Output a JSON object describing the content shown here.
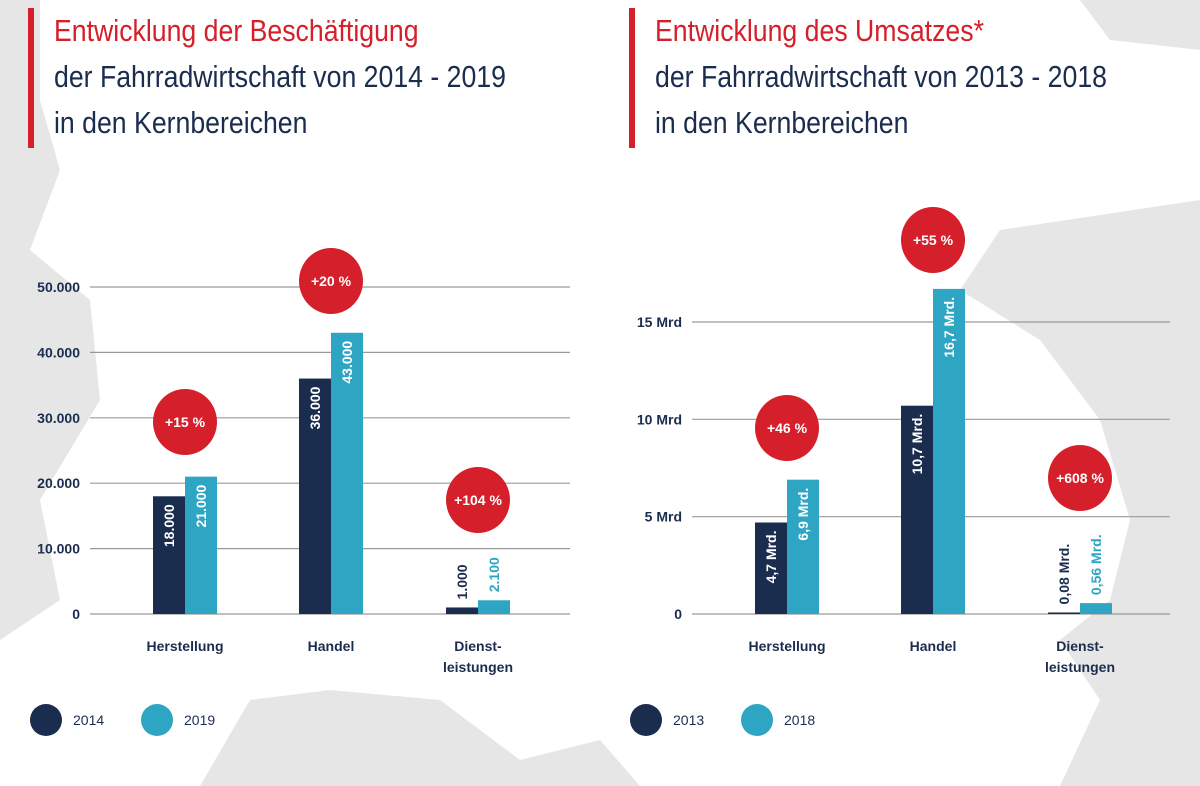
{
  "colors": {
    "navy": "#1b2d4f",
    "teal": "#2ea6c3",
    "red": "#d5202b",
    "grid": "#9a9a9a",
    "map_bg": "#e6e6e6",
    "map_land": "#ffffff"
  },
  "chart_data": [
    {
      "type": "bar",
      "title": "Entwicklung der Beschäftigung",
      "subtitle_lines": [
        "der Fahrradwirtschaft von 2014 - 2019",
        "in den Kernbereichen"
      ],
      "categories": [
        "Herstellung",
        "Handel",
        "Dienst-\nleistungen"
      ],
      "series": [
        {
          "name": "2014",
          "color": "#1b2d4f",
          "values": [
            18000,
            36000,
            1000
          ],
          "labels": [
            "18.000",
            "36.000",
            "1.000"
          ]
        },
        {
          "name": "2019",
          "color": "#2ea6c3",
          "values": [
            21000,
            43000,
            2100
          ],
          "labels": [
            "21.000",
            "43.000",
            "2.100"
          ]
        }
      ],
      "changes": [
        "+15 %",
        "+20 %",
        "+104 %"
      ],
      "yticks": [
        0,
        10000,
        20000,
        30000,
        40000,
        50000
      ],
      "ytick_labels": [
        "0",
        "10.000",
        "20.000",
        "30.000",
        "40.000",
        "50.000"
      ],
      "ylim": [
        0,
        50000
      ],
      "grid": true,
      "legend": "bottom-left",
      "xlabel": "",
      "ylabel": ""
    },
    {
      "type": "bar",
      "title": "Entwicklung des Umsatzes*",
      "subtitle_lines": [
        "der Fahrradwirtschaft von 2013 - 2018",
        "in den Kernbereichen"
      ],
      "categories": [
        "Herstellung",
        "Handel",
        "Dienst-\nleistungen"
      ],
      "series": [
        {
          "name": "2013",
          "color": "#1b2d4f",
          "values": [
            4.7,
            10.7,
            0.08
          ],
          "labels": [
            "4,7 Mrd.",
            "10,7 Mrd.",
            "0,08 Mrd."
          ]
        },
        {
          "name": "2018",
          "color": "#2ea6c3",
          "values": [
            6.9,
            16.7,
            0.56
          ],
          "labels": [
            "6,9 Mrd.",
            "16,7 Mrd.",
            "0,56 Mrd."
          ]
        }
      ],
      "changes": [
        "+46  %",
        "+55 %",
        "+608 %"
      ],
      "yticks": [
        0,
        5,
        10,
        15
      ],
      "ytick_labels": [
        "0",
        "5 Mrd",
        "10 Mrd",
        "15 Mrd"
      ],
      "ylim": [
        0,
        15
      ],
      "grid": true,
      "legend": "bottom-left",
      "xlabel": "",
      "ylabel": ""
    }
  ]
}
